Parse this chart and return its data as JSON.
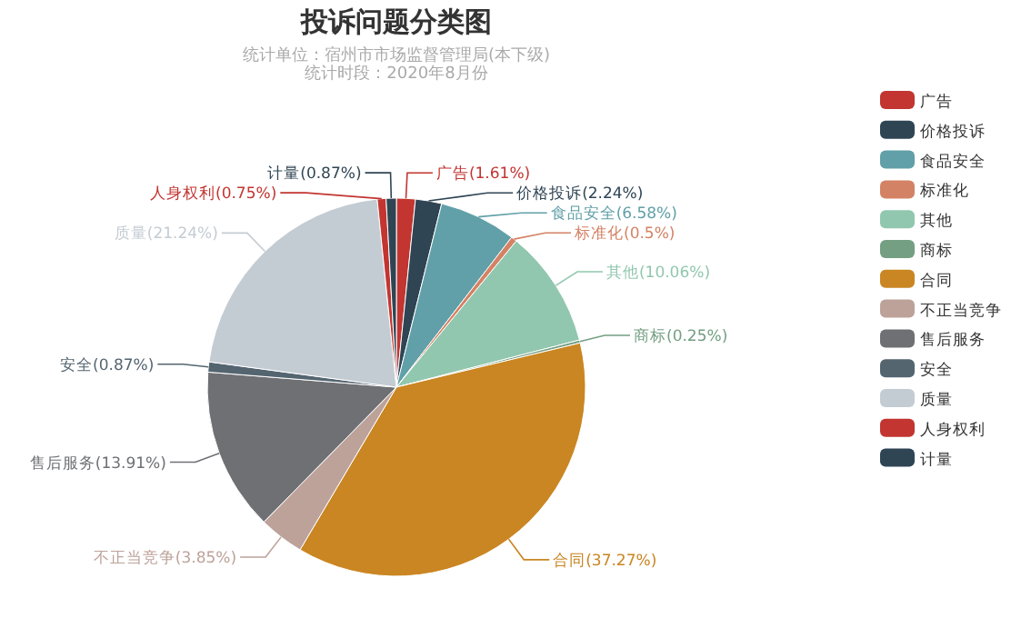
{
  "chart_data": {
    "type": "pie",
    "title": "投诉问题分类图",
    "subtitle": "统计单位：宿州市市场监督管理局(本下级)\n统计时段：2020年8月份",
    "categories": [
      "广告",
      "价格投诉",
      "食品安全",
      "标准化",
      "其他",
      "商标",
      "合同",
      "不正当竞争",
      "售后服务",
      "安全",
      "质量",
      "人身权利",
      "计量"
    ],
    "values": [
      1.61,
      2.24,
      6.58,
      0.5,
      10.06,
      0.25,
      37.27,
      3.85,
      13.91,
      0.87,
      21.24,
      0.75,
      0.87
    ],
    "value_labels": [
      "广告(1.61%)",
      "价格投诉(2.24%)",
      "食品安全(6.58%)",
      "标准化(0.5%)",
      "其他(10.06%)",
      "商标(0.25%)",
      "合同(37.27%)",
      "不正当竞争(3.85%)",
      "售后服务(13.91%)",
      "安全(0.87%)",
      "质量(21.24%)",
      "人身权利(0.75%)",
      "计量(0.87%)"
    ],
    "colors": [
      "#c23531",
      "#2f4554",
      "#61a0a8",
      "#d48265",
      "#91c7ae",
      "#749f83",
      "#ca8622",
      "#bda29a",
      "#6e7074",
      "#546570",
      "#c4ccd3",
      "#c23531",
      "#2f4554"
    ],
    "legend": "right"
  }
}
